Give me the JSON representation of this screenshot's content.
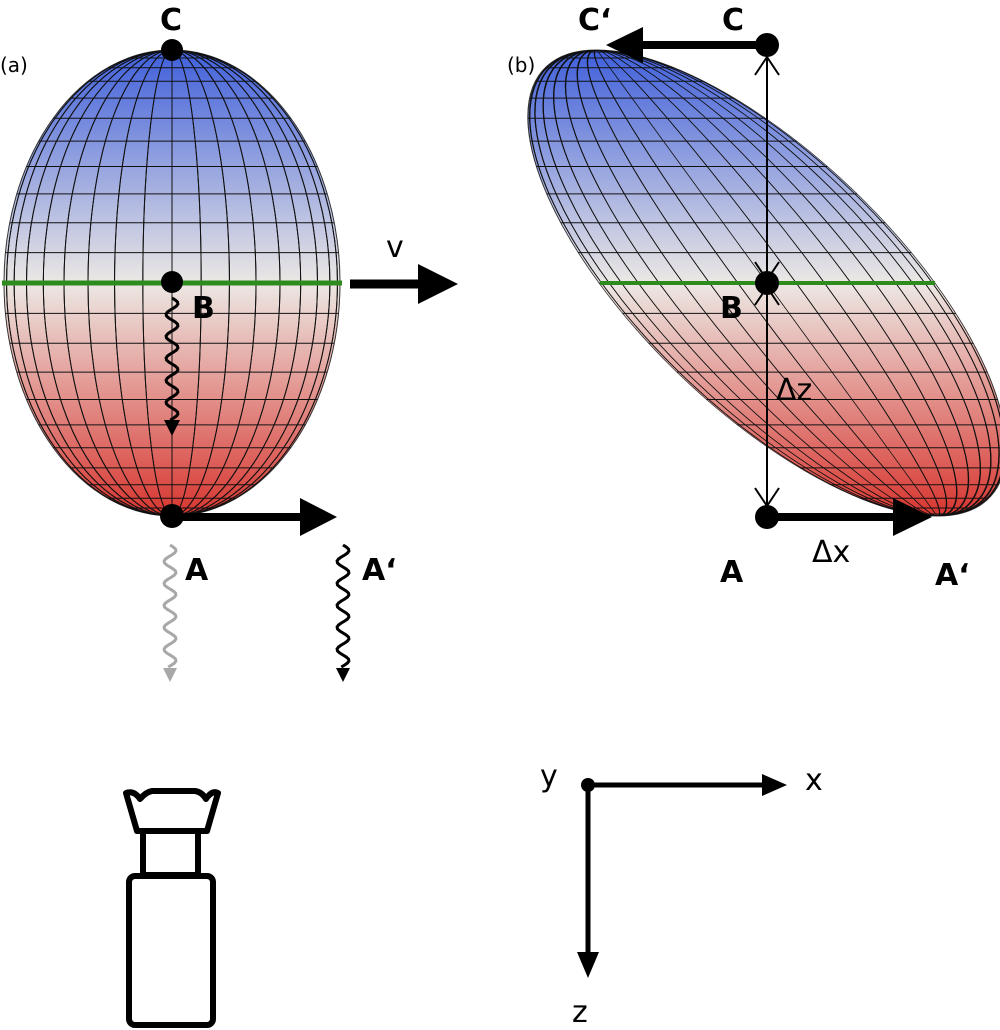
{
  "panel_a": {
    "tag": "(a)",
    "point_top": "C",
    "point_mid": "B",
    "point_bottom": "A",
    "point_shifted": "A‘",
    "velocity": "v"
  },
  "panel_b": {
    "tag": "(b)",
    "point_top": "C",
    "point_top_shifted": "C‘",
    "point_mid": "B",
    "point_bottom": "A",
    "point_bottom_shifted": "A‘",
    "delta_z": "Δz",
    "delta_x": "Δx"
  },
  "axes": {
    "x": "x",
    "y": "y",
    "z": "z"
  },
  "colors": {
    "top": "#3f62dc",
    "middle": "#eeeae6",
    "bottom": "#d83a34",
    "equator": "#2e8b1e",
    "grid": "#111111",
    "faded_wave": "#a8a8a8"
  },
  "icons": [
    "camera-icon",
    "wavy-arrow-icon"
  ]
}
